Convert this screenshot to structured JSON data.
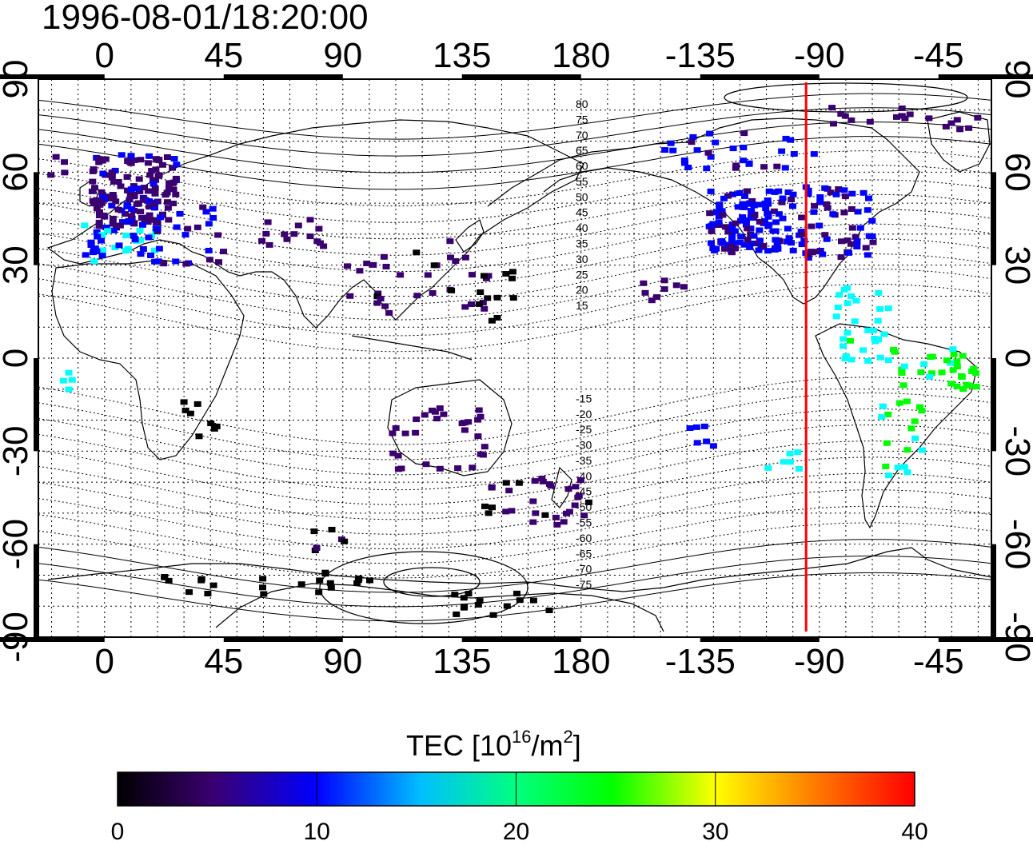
{
  "title": "1996-08-01/18:20:00",
  "map": {
    "lon_ticks": [
      "0",
      "45",
      "90",
      "135",
      "180",
      "-135",
      "-90",
      "-45"
    ],
    "lat_ticks": [
      "90",
      "60",
      "30",
      "0",
      "-30",
      "-60",
      "-90"
    ],
    "lon_range": [
      -25,
      335
    ],
    "lat_range": [
      -90,
      90
    ],
    "grid": "dotted, 10 degree spacing",
    "meridian_marker": {
      "longitude": -95,
      "color": "#ff0000"
    },
    "contour_levels": [
      "80",
      "75",
      "70",
      "65",
      "60",
      "55",
      "50",
      "45",
      "40",
      "35",
      "30",
      "25",
      "20",
      "15",
      "-15",
      "-20",
      "-25",
      "-30",
      "-35",
      "-40",
      "-45",
      "-50",
      "-55",
      "-60",
      "-65",
      "-70",
      "-75"
    ]
  },
  "colorbar": {
    "title_prefix": "TEC  [10",
    "title_exp": "16",
    "title_mid": "/m",
    "title_exp2": "2",
    "title_suffix": "]",
    "ticks": [
      "0",
      "10",
      "20",
      "30",
      "40"
    ],
    "range": [
      0,
      40
    ],
    "colormap": [
      "#000000",
      "#3a0070",
      "#0000ff",
      "#00ffff",
      "#00ff00",
      "#ffff00",
      "#ff0000"
    ]
  }
}
